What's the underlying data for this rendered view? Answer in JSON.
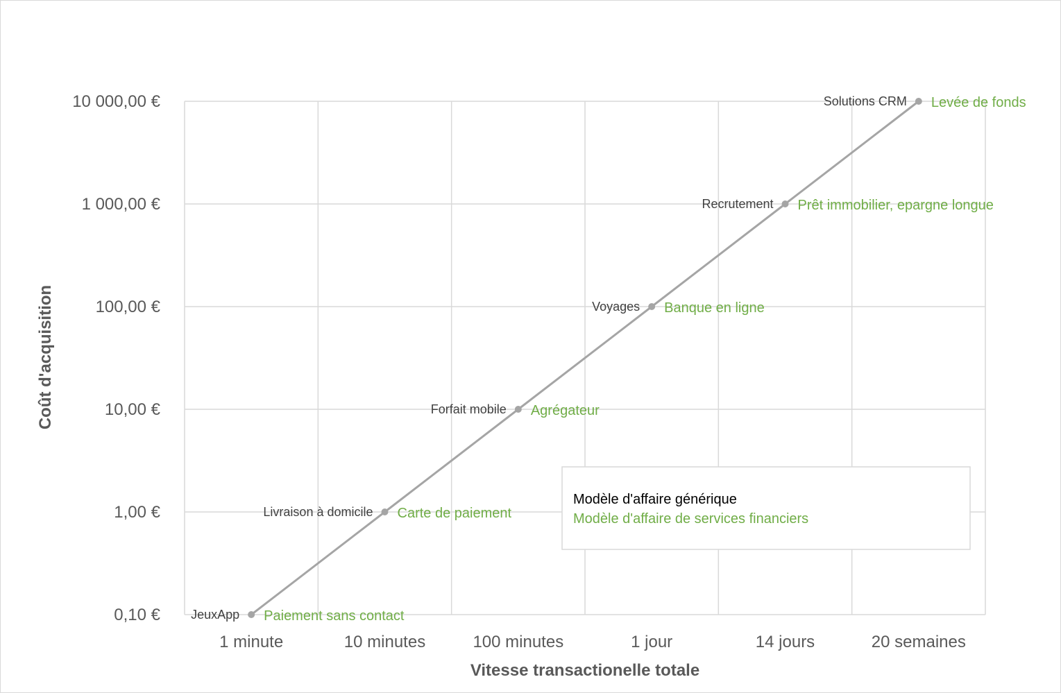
{
  "chart_data": {
    "type": "line",
    "title": "",
    "xlabel": "Vitesse transactionelle totale",
    "ylabel": "Coût d'acquisition",
    "y_scale": "log",
    "ylim": [
      0.1,
      10000
    ],
    "grid": true,
    "legend_position": "bottom-right",
    "categories": [
      "1 minute",
      "10 minutes",
      "100 minutes",
      "1 jour",
      "14 jours",
      "20 semaines"
    ],
    "y_tick_labels": [
      "10 000,00 €",
      "1 000,00 €",
      "100,00 €",
      "10,00 €",
      "1,00 €",
      "0,10 €"
    ],
    "y_tick_values": [
      10000,
      1000,
      100,
      10,
      1,
      0.1
    ],
    "series": [
      {
        "values": [
          0.1,
          1,
          10,
          100,
          1000,
          10000
        ],
        "color": "#a5a5a5"
      }
    ],
    "point_labels_generic": [
      "JeuxApp",
      "Livraison à domicile",
      "Forfait mobile",
      "Voyages",
      "Recrutement",
      "Solutions CRM"
    ],
    "point_labels_financial": [
      "Paiement sans contact",
      "Carte de paiement",
      "Agrégateur",
      "Banque en ligne",
      "Prêt immobilier, epargne longue",
      "Levée de fonds"
    ],
    "legend": [
      "Modèle d'affaire générique",
      "Modèle d'affaire de services financiers"
    ],
    "colors": {
      "generic_label": "#404040",
      "financial_label": "#70ad47",
      "line": "#a5a5a5",
      "grid": "#d9d9d9"
    }
  }
}
